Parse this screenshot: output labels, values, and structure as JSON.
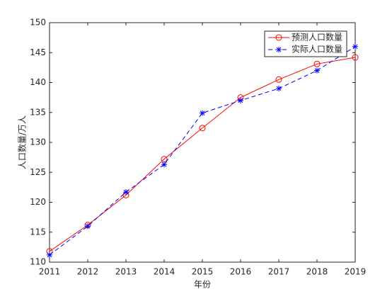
{
  "chart_data": {
    "type": "line",
    "x": [
      2011,
      2012,
      2013,
      2014,
      2015,
      2016,
      2017,
      2018,
      2019
    ],
    "series": [
      {
        "name": "预测人口数量",
        "color": "#ff0000",
        "marker": "circle",
        "linestyle": "solid",
        "values": [
          111.8,
          116.2,
          121.2,
          127.2,
          132.4,
          137.5,
          140.5,
          143.1,
          144.2
        ]
      },
      {
        "name": "实际人口数量",
        "color": "#0000ff",
        "marker": "star",
        "linestyle": "dashed",
        "values": [
          111.2,
          116.0,
          121.7,
          126.3,
          134.9,
          137.0,
          139.0,
          142.0,
          146.0
        ]
      }
    ],
    "xlabel": "年份",
    "ylabel": "人口数量/万人",
    "xlim": [
      2011,
      2019
    ],
    "xticks": [
      2011,
      2012,
      2013,
      2014,
      2015,
      2016,
      2017,
      2018,
      2019
    ],
    "ylim": [
      110,
      150
    ],
    "yticks": [
      110,
      115,
      120,
      125,
      130,
      135,
      140,
      145,
      150
    ],
    "legend": "top-right",
    "grid": false
  }
}
